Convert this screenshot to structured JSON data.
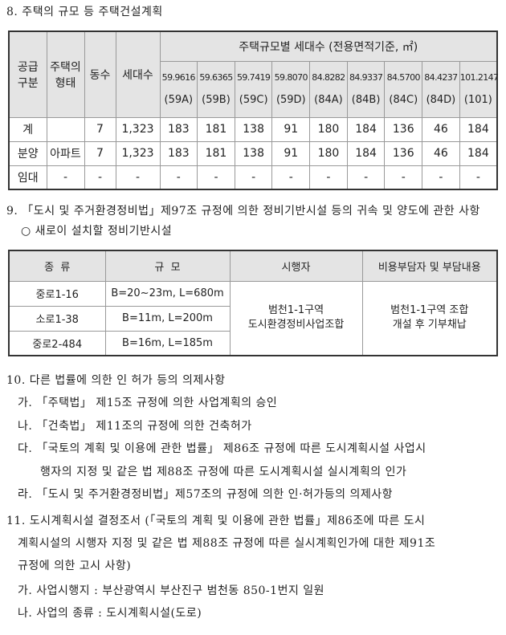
{
  "s8": {
    "title": "8. 주택의 규모 등 주택건설계획"
  },
  "t1": {
    "h_supply": "공급\n구분",
    "h_type": "주택의\n형태",
    "h_bldg": "동수",
    "h_units": "세대수",
    "h_group": "주택규모별 세대수 (전용면적기준, ㎡)",
    "sizes": [
      "59.9616",
      "59.6365",
      "59.7419",
      "59.8070",
      "84.8282",
      "84.9337",
      "84.5700",
      "84.4237",
      "101.2147"
    ],
    "codes": [
      "(59A)",
      "(59B)",
      "(59C)",
      "(59D)",
      "(84A)",
      "(84B)",
      "(84C)",
      "(84D)",
      "(101)"
    ],
    "rows": [
      {
        "supply": "계",
        "type": "",
        "bldg": "7",
        "units": "1,323",
        "vals": [
          "183",
          "181",
          "138",
          "91",
          "180",
          "184",
          "136",
          "46",
          "184"
        ]
      },
      {
        "supply": "분양",
        "type": "아파트",
        "bldg": "7",
        "units": "1,323",
        "vals": [
          "183",
          "181",
          "138",
          "91",
          "180",
          "184",
          "136",
          "46",
          "184"
        ]
      },
      {
        "supply": "임대",
        "type": "-",
        "bldg": "-",
        "units": "-",
        "vals": [
          "-",
          "-",
          "-",
          "-",
          "-",
          "-",
          "-",
          "-",
          "-"
        ]
      }
    ]
  },
  "s9": {
    "title": "9. 「도시 및 주거환경정비법」제97조 규정에 의한 정비기반시설 등의 귀속 및 양도에 관한 사항",
    "sub": "○ 새로이 설치할 정비기반시설"
  },
  "t2": {
    "headers": [
      "종  류",
      "규  모",
      "시행자",
      "비용부담자 및 부담내용"
    ],
    "rows": [
      {
        "kind": "중로1-16",
        "scale": "B=20~23m, L=680m"
      },
      {
        "kind": "소로1-38",
        "scale": "B=11m, L=200m"
      },
      {
        "kind": "중로2-484",
        "scale": "B=16m, L=185m"
      }
    ],
    "operator": "범천1-1구역\n도시환경정비사업조합",
    "cost": "범천1-1구역 조합\n개설 후 기부채납"
  },
  "s10": {
    "title": "10. 다른 법률에 의한 인 허가 등의 의제사항",
    "items": [
      "가. 「주택법」 제15조 규정에 의한 사업계획의 승인",
      "나. 「건축법」 제11조의 규정에 의한 건축허가",
      "다. 「국토의 계획 및 이용에 관한 법률」 제86조 규정에 따른 도시계획시설 사업시",
      "행자의 지정 및 같은 법 제88조 규정에 따른 도시계획시설 실시계획의 인가",
      "라. 「도시 및 주거환경정비법」제57조의 규정에 의한 인·허가등의 의제사항"
    ]
  },
  "s11": {
    "lines": [
      "11. 도시계획시설 결정조서 (「국토의 계획 및 이용에 관한 법률」제86조에 따른 도시",
      "계획시설의 시행자 지정 및 같은 법 제88조 규정에 따른 실시계획인가에 대한 제91조",
      "규정에 의한 고시 사항)",
      "가. 사업시행지 : 부산광역시 부산진구 범천동 850-1번지 일원",
      "나. 사업의 종류 : 도시계획시설(도로)"
    ]
  }
}
